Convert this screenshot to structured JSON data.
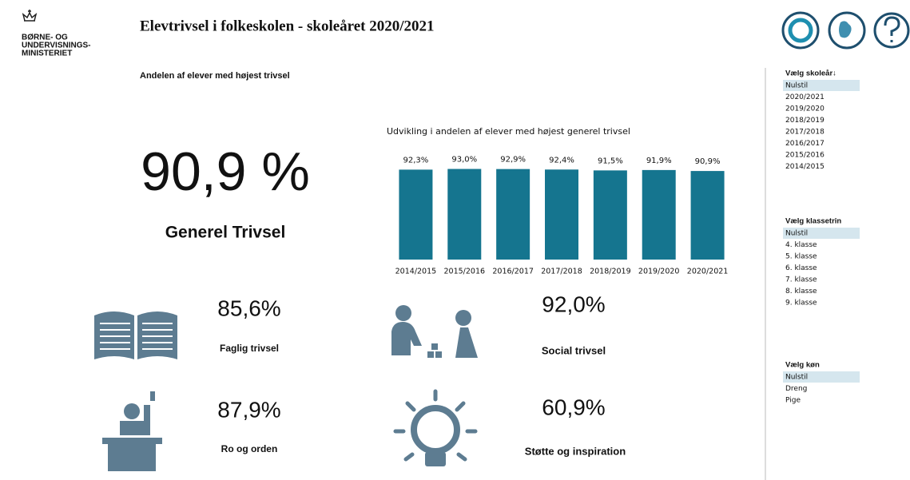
{
  "header": {
    "logo": [
      "BØRNE- OG",
      "UNDERVISNINGS-",
      "MINISTERIET"
    ],
    "title": "Elevtrivsel i folkeskolen - skoleåret 2020/2021",
    "subtitle": "Andelen af elever med højest trivsel"
  },
  "main_kpi": {
    "value": "90,9 %",
    "label": "Generel Trivsel"
  },
  "kpis": [
    {
      "value": "85,6%",
      "label": "Faglig trivsel"
    },
    {
      "value": "92,0%",
      "label": "Social trivsel"
    },
    {
      "value": "87,9%",
      "label": "Ro og orden"
    },
    {
      "value": "60,9%",
      "label": "Støtte og inspiration"
    }
  ],
  "chart_data": {
    "type": "bar",
    "title": "Udvikling i andelen af elever med højest generel trivsel",
    "categories": [
      "2014/2015",
      "2015/2016",
      "2016/2017",
      "2017/2018",
      "2018/2019",
      "2019/2020",
      "2020/2021"
    ],
    "values": [
      92.3,
      93.0,
      92.9,
      92.4,
      91.5,
      91.9,
      90.9
    ],
    "value_labels": [
      "92,3%",
      "93,0%",
      "92,9%",
      "92,4%",
      "91,5%",
      "91,9%",
      "90,9%"
    ],
    "color": "#15758f",
    "ylim": [
      0,
      100
    ]
  },
  "filters": [
    {
      "title": "Vælg skoleår↓",
      "items": [
        "Nulstil",
        "2020/2021",
        "2019/2020",
        "2018/2019",
        "2017/2018",
        "2016/2017",
        "2015/2016",
        "2014/2015"
      ]
    },
    {
      "title": "Vælg klassetrin",
      "items": [
        "Nulstil",
        "4. klasse",
        "5. klasse",
        "6. klasse",
        "7. klasse",
        "8. klasse",
        "9. klasse"
      ]
    },
    {
      "title": "Vælg køn",
      "items": [
        "Nulstil",
        "Dreng",
        "Pige"
      ]
    }
  ]
}
